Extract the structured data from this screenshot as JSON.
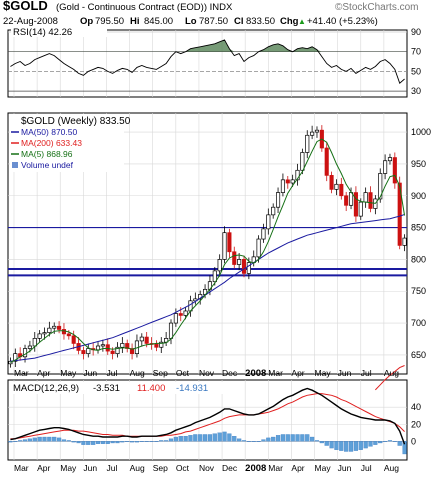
{
  "header": {
    "symbol": "$GOLD",
    "name": "(Gold - Continuous Contract (EOD)) INDX",
    "watermark": "©StockCharts.com",
    "date": "22-Aug-2008",
    "open_label": "Op",
    "open": "795.50",
    "high_label": "Hi",
    "high": "845.00",
    "low_label": "Lo",
    "low": "787.50",
    "close_label": "Cl",
    "close": "833.50",
    "chg_label": "Chg",
    "chg": "+41.40 (+5.23%)",
    "chg_arrow": "▲"
  },
  "rsi": {
    "label": "RSI(14) 42.26",
    "ticks": [
      90,
      70,
      50,
      30
    ],
    "ylim": [
      24,
      92
    ]
  },
  "main_legend": {
    "title": "$GOLD (Weekly) 833.50",
    "items": [
      {
        "text": "MA(50) 870.50",
        "color": "#1a1aa0"
      },
      {
        "text": "MA(200) 633.43",
        "color": "#e02020"
      },
      {
        "text": "MA(5) 868.96",
        "color": "#157015"
      },
      {
        "text": "Volume undef",
        "color": "#1a1aa0"
      }
    ]
  },
  "main_yticks": [
    1000,
    950,
    900,
    850,
    800,
    750,
    700,
    650
  ],
  "x_labels": [
    "Mar",
    "Apr",
    "May",
    "Jun",
    "Jul",
    "Aug",
    "Sep",
    "Oct",
    "Nov",
    "Dec",
    "2008",
    "Mar",
    "Apr",
    "May",
    "Jun",
    "Jul",
    "Aug"
  ],
  "macd": {
    "label": "MACD(12,26,9) -3.531, 11.400, -14.931",
    "macd_value": "-3.531",
    "signal_value": "11.400",
    "hist_value": "-14.931",
    "ticks": [
      40,
      20,
      0
    ],
    "ylim": [
      -22,
      72
    ]
  },
  "colors": {
    "up": "#000000",
    "down": "#cc1111",
    "ma50": "#1a1aa0",
    "ma200": "#e02020",
    "ma5": "#157015",
    "hline": "#1a1aa0",
    "hist": "#5ea0d8",
    "rsi_fill": "#4a7a4a"
  },
  "chart_data": {
    "type": "candlestick",
    "title": "$GOLD (Weekly) 833.50",
    "ylim": [
      620,
      1030
    ],
    "horizontal_lines": [
      850,
      785,
      775
    ],
    "weeks": 82,
    "closes": [
      640,
      652,
      647,
      660,
      664,
      676,
      683,
      685,
      692,
      695,
      690,
      683,
      680,
      668,
      657,
      652,
      660,
      658,
      664,
      666,
      656,
      652,
      662,
      668,
      660,
      652,
      672,
      678,
      668,
      667,
      662,
      670,
      676,
      700,
      715,
      712,
      719,
      735,
      738,
      745,
      753,
      765,
      782,
      800,
      842,
      812,
      792,
      800,
      778,
      795,
      804,
      832,
      848,
      870,
      882,
      905,
      925,
      920,
      925,
      940,
      968,
      995,
      1000,
      1003,
      975,
      932,
      910,
      918,
      900,
      885,
      905,
      868,
      890,
      905,
      880,
      895,
      935,
      955,
      960,
      920,
      822,
      833.5
    ],
    "ma5": [
      638,
      642,
      647,
      651,
      656,
      663,
      670,
      676,
      682,
      687,
      688,
      688,
      686,
      682,
      676,
      668,
      661,
      658,
      657,
      660,
      660,
      659,
      660,
      661,
      661,
      659,
      661,
      664,
      666,
      667,
      668,
      668,
      669,
      675,
      685,
      697,
      708,
      719,
      727,
      735,
      744,
      753,
      763,
      775,
      792,
      802,
      806,
      807,
      805,
      797,
      794,
      800,
      812,
      828,
      847,
      867,
      885,
      904,
      916,
      927,
      938,
      954,
      970,
      985,
      989,
      984,
      968,
      950,
      935,
      918,
      906,
      895,
      891,
      890,
      889,
      888,
      898,
      915,
      930,
      932,
      915,
      869
    ],
    "ma50": [
      640,
      641,
      642,
      643,
      644,
      645,
      647,
      649,
      651,
      653,
      655,
      657,
      659,
      661,
      663,
      665,
      667,
      669,
      671,
      673,
      675,
      677,
      680,
      683,
      686,
      689,
      692,
      695,
      698,
      701,
      704,
      707,
      710,
      713,
      717,
      721,
      725,
      729,
      734,
      739,
      744,
      749,
      754,
      759,
      764,
      770,
      775,
      780,
      785,
      790,
      795,
      800,
      805,
      810,
      814,
      818,
      822,
      826,
      829,
      832,
      835,
      838,
      840,
      842,
      844,
      846,
      848,
      850,
      852,
      854,
      856,
      857,
      858,
      859,
      860,
      861,
      862,
      863,
      864,
      866,
      868,
      870.5
    ],
    "ma200_end": [
      595,
      603,
      611,
      618,
      624,
      630,
      633.43
    ],
    "rsi_values": [
      55,
      58,
      60,
      56,
      58,
      62,
      64,
      66,
      68,
      66,
      62,
      58,
      55,
      52,
      48,
      46,
      50,
      52,
      54,
      53,
      50,
      48,
      51,
      53,
      52,
      49,
      54,
      56,
      54,
      53,
      52,
      55,
      58,
      65,
      70,
      68,
      70,
      73,
      74,
      75,
      76,
      77,
      78,
      80,
      82,
      73,
      66,
      68,
      60,
      64,
      66,
      70,
      72,
      75,
      77,
      78,
      76,
      72,
      70,
      73,
      74,
      73,
      75,
      72,
      65,
      58,
      54,
      56,
      52,
      50,
      53,
      48,
      51,
      54,
      52,
      55,
      60,
      62,
      58,
      52,
      38,
      42.26
    ],
    "macd_line": [
      2,
      3,
      5,
      7,
      9,
      11,
      13,
      14,
      15,
      16,
      16,
      15,
      14,
      12,
      10,
      8,
      7,
      6,
      6,
      5,
      5,
      5,
      5,
      6,
      6,
      5,
      5,
      6,
      6,
      6,
      6,
      7,
      8,
      10,
      13,
      15,
      17,
      19,
      22,
      24,
      26,
      28,
      31,
      34,
      38,
      38,
      36,
      34,
      32,
      31,
      31,
      32,
      35,
      38,
      41,
      45,
      49,
      52,
      54,
      57,
      60,
      62,
      60,
      57,
      54,
      50,
      46,
      42,
      38,
      35,
      32,
      30,
      28,
      27,
      26,
      25,
      25,
      25,
      24,
      21,
      12,
      -3.531
    ],
    "signal_line": [
      3,
      3,
      4,
      5,
      6,
      7,
      8,
      9,
      10,
      11,
      12,
      13,
      13,
      13,
      12,
      12,
      11,
      10,
      9,
      8,
      8,
      7,
      7,
      7,
      6,
      6,
      6,
      6,
      6,
      6,
      6,
      6,
      7,
      7,
      8,
      9,
      11,
      12,
      14,
      16,
      18,
      20,
      22,
      24,
      27,
      29,
      30,
      31,
      31,
      31,
      31,
      32,
      33,
      34,
      36,
      38,
      41,
      44,
      46,
      49,
      52,
      54,
      55,
      56,
      56,
      55,
      54,
      52,
      49,
      47,
      44,
      41,
      38,
      35,
      32,
      29,
      27,
      25,
      23,
      21,
      17,
      11.4
    ],
    "macd_hist": [
      -1,
      0,
      1,
      2,
      3,
      4,
      5,
      5,
      5,
      5,
      4,
      2,
      1,
      -1,
      -2,
      -4,
      -4,
      -4,
      -3,
      -3,
      -3,
      -2,
      -2,
      -1,
      0,
      -1,
      -1,
      0,
      0,
      0,
      0,
      1,
      1,
      3,
      5,
      6,
      6,
      7,
      8,
      8,
      8,
      8,
      9,
      10,
      11,
      9,
      6,
      3,
      1,
      0,
      0,
      0,
      2,
      4,
      5,
      7,
      8,
      8,
      8,
      8,
      8,
      8,
      5,
      1,
      -2,
      -5,
      -8,
      -10,
      -11,
      -12,
      -12,
      -11,
      -10,
      -8,
      -6,
      -4,
      -2,
      0,
      1,
      0,
      -5,
      -14.931
    ]
  }
}
